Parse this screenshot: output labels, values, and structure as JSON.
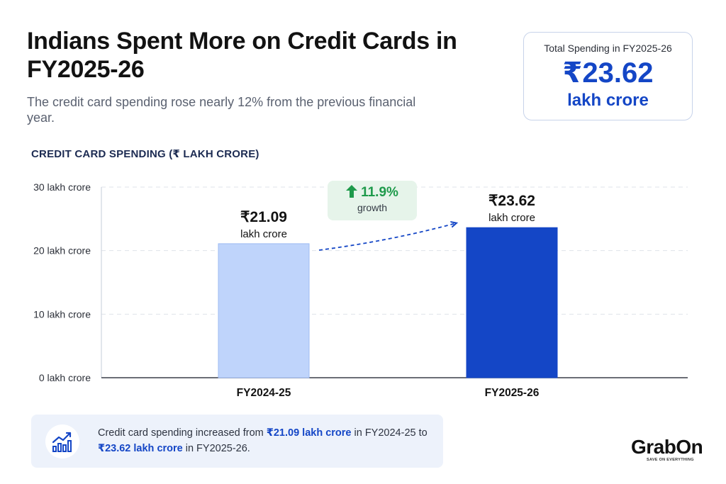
{
  "header": {
    "title": "Indians Spent More on Credit Cards in FY2025-26",
    "subtitle": "The credit card spending rose nearly 12% from the previous financial year."
  },
  "total_card": {
    "label": "Total Spending in FY2025-26",
    "value": "₹23.62",
    "unit": "lakh crore"
  },
  "chart_heading": "CREDIT CARD SPENDING (₹ LAKH CRORE)",
  "growth": {
    "value": "11.9%",
    "label": "growth",
    "icon": "up-arrow-icon"
  },
  "summary": {
    "icon": "chart-growth-icon",
    "part1": "Credit card spending increased from ",
    "highlight1": "₹21.09 lakh crore",
    "part2": " in FY2024-25 to ",
    "highlight2": "₹23.62 lakh crore",
    "part3": " in FY2025-26."
  },
  "brand": {
    "name": "GrabOn",
    "tagline": "SAVE ON EVERYTHING"
  },
  "colors": {
    "accent": "#1446c6",
    "bar_previous": "#bfd4fb",
    "bar_current": "#1446c6",
    "growth_green": "#1e9a4b"
  },
  "chart_data": {
    "type": "bar",
    "categories": [
      "FY2024-25",
      "FY2025-26"
    ],
    "values": [
      21.09,
      23.62
    ],
    "data_labels": [
      {
        "value": "₹21.09",
        "unit": "lakh crore"
      },
      {
        "value": "₹23.62",
        "unit": "lakh crore"
      }
    ],
    "yticks": [
      {
        "value": 0,
        "label": "0 lakh crore"
      },
      {
        "value": 10,
        "label": "10 lakh crore"
      },
      {
        "value": 20,
        "label": "20 lakh crore"
      },
      {
        "value": 30,
        "label": "30 lakh crore"
      }
    ],
    "ylim": [
      0,
      30
    ],
    "grid": true
  }
}
